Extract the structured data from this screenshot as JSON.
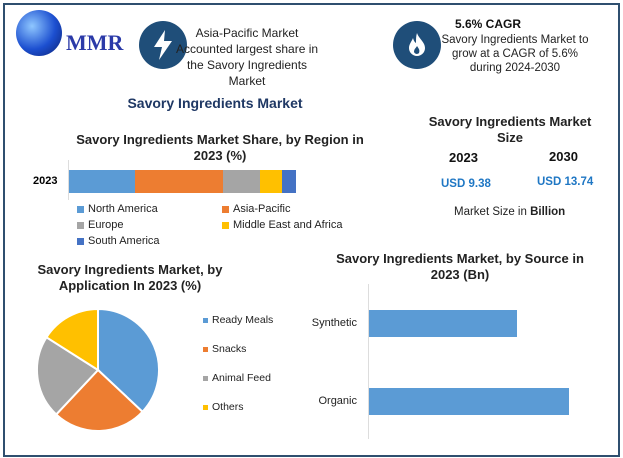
{
  "logo": {
    "text": "MMR"
  },
  "highlight1": {
    "text": "Asia-Pacific Market Accounted largest share in the Savory Ingredients Market",
    "icon": "lightning-icon"
  },
  "highlight2": {
    "title": "5.6% CAGR",
    "text": "Savory Ingredients Market to grow at a CAGR of 5.6% during 2024-2030",
    "icon": "flame-icon"
  },
  "main_title": "Savory Ingredients Market",
  "market_size": {
    "title": "Savory Ingredients Market Size",
    "years": [
      "2023",
      "2030"
    ],
    "values": [
      "USD 9.38",
      "USD 13.74"
    ],
    "note_prefix": "Market Size in ",
    "note_bold": "Billion",
    "value_color": "#1f77c4"
  },
  "chart_data": [
    {
      "type": "bar",
      "orientation": "horizontal",
      "stacked": true,
      "title": "Savory Ingredients Market Share, by Region in 2023 (%)",
      "categories": [
        "2023"
      ],
      "series": [
        {
          "name": "North America",
          "values": [
            29
          ],
          "color": "#5b9bd5"
        },
        {
          "name": "Asia-Pacific",
          "values": [
            39
          ],
          "color": "#ed7d31"
        },
        {
          "name": "Europe",
          "values": [
            16
          ],
          "color": "#a5a5a5"
        },
        {
          "name": "Middle East and Africa",
          "values": [
            10
          ],
          "color": "#ffc000"
        },
        {
          "name": "South America",
          "values": [
            6
          ],
          "color": "#4472c4"
        }
      ],
      "legend": "bottom"
    },
    {
      "type": "pie",
      "title": "Savory Ingredients Market, by Application In 2023 (%)",
      "categories": [
        "Ready Meals",
        "Snacks",
        "Animal Feed",
        "Others"
      ],
      "values": [
        37,
        25,
        22,
        16
      ],
      "colors": [
        "#5b9bd5",
        "#ed7d31",
        "#a5a5a5",
        "#ffc000"
      ],
      "legend": "right"
    },
    {
      "type": "bar",
      "orientation": "horizontal",
      "title": "Savory Ingredients Market, by Source in 2023 (Bn)",
      "categories": [
        "Synthetic",
        "Organic"
      ],
      "values": [
        4.0,
        5.4
      ],
      "color": "#5b9bd5"
    }
  ]
}
